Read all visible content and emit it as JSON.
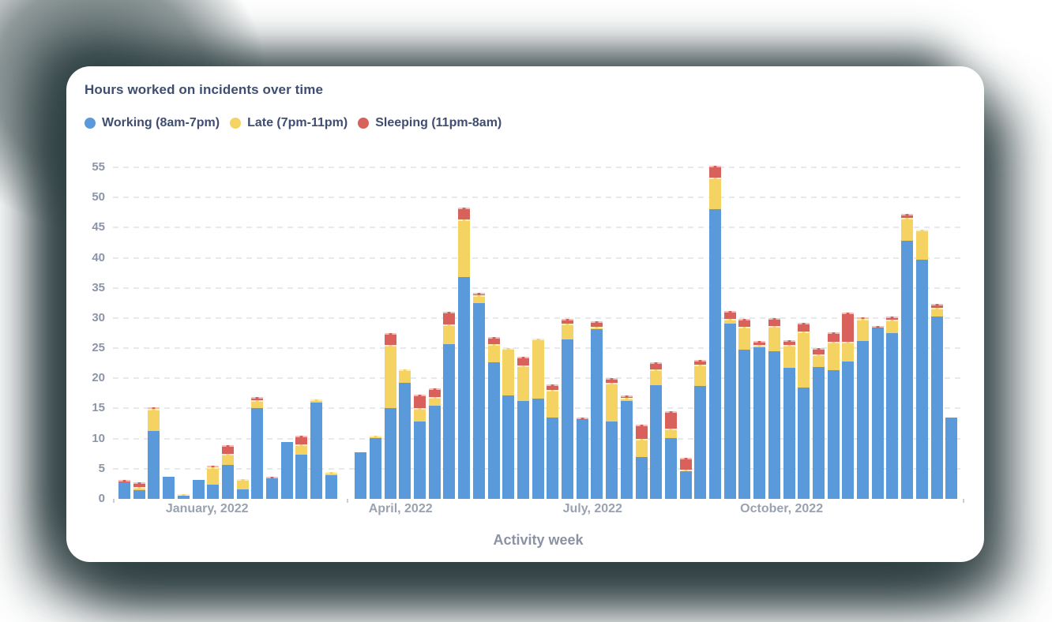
{
  "page": {
    "background": "#FFFFFF"
  },
  "card": {
    "title": "Hours worked on incidents over time",
    "xlabel": "Activity week",
    "legend": [
      {
        "label": "Working (8am-7pm)",
        "color": "#5A9ADB"
      },
      {
        "label": "Late (7pm-11pm)",
        "color": "#F5D362"
      },
      {
        "label": "Sleeping (11pm-8am)",
        "color": "#D9615B"
      }
    ]
  },
  "chart_data": {
    "type": "bar",
    "stacked": true,
    "title": "Hours worked on incidents over time",
    "xlabel": "Activity week",
    "ylabel": "",
    "ylim": [
      0,
      55
    ],
    "ytick_step": 5,
    "grid": "horizontal-dashed",
    "legend_position": "top-left",
    "x_unit": "week",
    "weeks": 57,
    "month_labels": [
      {
        "label": "January, 2022",
        "week_index": 5.5
      },
      {
        "label": "April, 2022",
        "week_index": 18.6
      },
      {
        "label": "July, 2022",
        "week_index": 31.6
      },
      {
        "label": "October, 2022",
        "week_index": 44.4
      }
    ],
    "series": [
      {
        "name": "Working (8am-7pm)",
        "color": "#5A9ADB",
        "values": [
          2.8,
          1.5,
          11.3,
          3.7,
          0.5,
          3.1,
          2.4,
          5.6,
          1.6,
          15.1,
          3.4,
          9.4,
          7.3,
          16.0,
          3.9,
          0,
          7.7,
          10.1,
          15.1,
          19.3,
          12.8,
          15.5,
          25.7,
          36.8,
          32.5,
          22.6,
          17.1,
          16.3,
          16.6,
          13.5,
          26.5,
          13.1,
          28.1,
          12.8,
          16.2,
          7.0,
          18.9,
          10.1,
          4.6,
          18.7,
          48.0,
          29.1,
          24.7,
          25.1,
          24.5,
          21.7,
          18.5,
          21.9,
          21.4,
          22.8,
          26.2,
          28.3,
          27.5,
          42.8,
          39.7,
          30.2,
          13.5
        ]
      },
      {
        "name": "Late (7pm-11pm)",
        "color": "#F5D362",
        "values": [
          0,
          0.5,
          3.6,
          0,
          0.3,
          0,
          2.8,
          1.9,
          1.7,
          1.3,
          0,
          0,
          1.8,
          0.5,
          0.6,
          0,
          0,
          0.4,
          10.4,
          2.2,
          2.3,
          1.4,
          3.3,
          9.5,
          1.3,
          3.1,
          7.9,
          5.8,
          10.0,
          4.6,
          2.6,
          0,
          0.4,
          6.5,
          0.5,
          2.9,
          2.6,
          1.6,
          0.2,
          3.6,
          5.3,
          0.7,
          3.8,
          0.4,
          4.2,
          3.8,
          9.2,
          2.1,
          4.6,
          3.2,
          3.6,
          0,
          2.2,
          3.8,
          4.9,
          1.5,
          0
        ]
      },
      {
        "name": "Sleeping (11pm-8am)",
        "color": "#D9615B",
        "values": [
          0.3,
          0.7,
          0.3,
          0,
          0,
          0,
          0.2,
          1.4,
          0,
          0.5,
          0.2,
          0,
          1.4,
          0,
          0,
          0,
          0,
          0,
          2.0,
          0,
          2.2,
          1.4,
          2.1,
          2.0,
          0.4,
          1.1,
          0,
          1.5,
          0,
          0.9,
          0.8,
          0.4,
          1.0,
          0.8,
          0.5,
          2.4,
          1.2,
          2.8,
          2.0,
          0.8,
          2.0,
          1.4,
          1.4,
          0.7,
          1.3,
          0.8,
          1.5,
          1.0,
          1.6,
          4.9,
          0.3,
          0.4,
          0.6,
          0.7,
          0,
          0.6,
          0
        ]
      }
    ]
  },
  "colors": {
    "title_text": "#3F4E70",
    "axis_tick_text": "#8C94A7",
    "month_label_text": "#9AA2B1",
    "axis_title_text": "#8A92A3",
    "gridline": "#E6E9EE",
    "card_background": "#FFFFFF",
    "shadow": "#2F4042"
  }
}
